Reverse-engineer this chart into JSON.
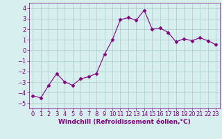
{
  "x": [
    0,
    1,
    2,
    3,
    4,
    5,
    6,
    7,
    8,
    9,
    10,
    11,
    12,
    13,
    14,
    15,
    16,
    17,
    18,
    19,
    20,
    21,
    22,
    23
  ],
  "y": [
    -4.3,
    -4.5,
    -3.3,
    -2.2,
    -3.0,
    -3.3,
    -2.7,
    -2.5,
    -2.2,
    -0.4,
    1.0,
    2.9,
    3.1,
    2.85,
    3.8,
    2.0,
    2.1,
    1.7,
    0.8,
    1.1,
    0.9,
    1.2,
    0.9,
    0.55
  ],
  "line_color": "#800080",
  "marker": "D",
  "marker_size": 2.5,
  "bg_color": "#d6eeee",
  "grid_color": "#aacccc",
  "xlabel": "Windchill (Refroidissement éolien,°C)",
  "xlabel_fontsize": 6.5,
  "tick_fontsize": 6.0,
  "xlim": [
    -0.5,
    23.5
  ],
  "ylim": [
    -5.5,
    4.5
  ],
  "yticks": [
    -5,
    -4,
    -3,
    -2,
    -1,
    0,
    1,
    2,
    3,
    4
  ],
  "xticks": [
    0,
    1,
    2,
    3,
    4,
    5,
    6,
    7,
    8,
    9,
    10,
    11,
    12,
    13,
    14,
    15,
    16,
    17,
    18,
    19,
    20,
    21,
    22,
    23
  ]
}
